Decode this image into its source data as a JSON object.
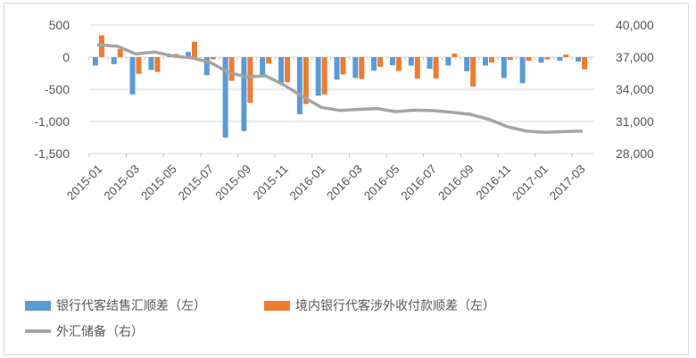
{
  "chart_data": {
    "type": "bar",
    "title": "",
    "categories": [
      "2015-01",
      "2015-02",
      "2015-03",
      "2015-04",
      "2015-05",
      "2015-06",
      "2015-07",
      "2015-08",
      "2015-09",
      "2015-10",
      "2015-11",
      "2015-12",
      "2016-01",
      "2016-02",
      "2016-03",
      "2016-04",
      "2016-05",
      "2016-06",
      "2016-07",
      "2016-08",
      "2016-09",
      "2016-10",
      "2016-11",
      "2016-12",
      "2017-01",
      "2017-02",
      "2017-03"
    ],
    "x_tick_labels_shown": [
      "2015-01",
      "2015-03",
      "2015-05",
      "2015-07",
      "2015-09",
      "2015-11",
      "2016-01",
      "2016-03",
      "2016-05",
      "2016-07",
      "2016-09",
      "2016-11",
      "2017-01",
      "2017-03"
    ],
    "x_label_every": 2,
    "series": [
      {
        "name": "银行代客结售汇顺差（左）",
        "type": "bar",
        "axis": "left",
        "color": "#5B9BD5",
        "values": [
          -130,
          -110,
          -580,
          -200,
          15,
          80,
          -280,
          -1250,
          -1150,
          -280,
          -400,
          -890,
          -600,
          -350,
          -325,
          -210,
          -125,
          -130,
          -180,
          -130,
          -220,
          -130,
          -325,
          -405,
          -85,
          -55,
          -70
        ]
      },
      {
        "name": "境内银行代客涉外收付款顺差（左）",
        "type": "bar",
        "axis": "left",
        "color": "#ED7D31",
        "values": [
          340,
          125,
          -260,
          -230,
          50,
          240,
          -35,
          -370,
          -710,
          -100,
          -390,
          -730,
          -580,
          -270,
          -340,
          -150,
          -215,
          -335,
          -330,
          55,
          -455,
          -85,
          -45,
          -55,
          -35,
          40,
          -190
        ]
      },
      {
        "name": "外汇储备（右）",
        "type": "line",
        "axis": "right",
        "color": "#A5A5A5",
        "values": [
          38134,
          38023,
          37300,
          37481,
          37111,
          36938,
          36513,
          35573,
          35141,
          35255,
          34383,
          33304,
          32309,
          32023,
          32126,
          32197,
          31917,
          32052,
          32011,
          31852,
          31664,
          31207,
          30516,
          30105,
          29982,
          30051,
          30091
        ]
      }
    ],
    "left_axis": {
      "range": [
        -1500,
        500
      ],
      "tick_values": [
        500,
        0,
        -500,
        -1000,
        -1500
      ],
      "tick_labels": [
        "500",
        "0",
        "-500",
        "-1,000",
        "-1,500"
      ]
    },
    "right_axis": {
      "range": [
        28000,
        40000
      ],
      "tick_values": [
        40000,
        37000,
        34000,
        31000,
        28000
      ],
      "tick_labels": [
        "40,000",
        "37,000",
        "34,000",
        "31,000",
        "28,000"
      ]
    },
    "grid": true,
    "legend_position": "bottom",
    "colors": {
      "grid": "#D9D9D9",
      "axis_text": "#595959",
      "tick": "#bfbfbf",
      "background": "#ffffff"
    }
  }
}
